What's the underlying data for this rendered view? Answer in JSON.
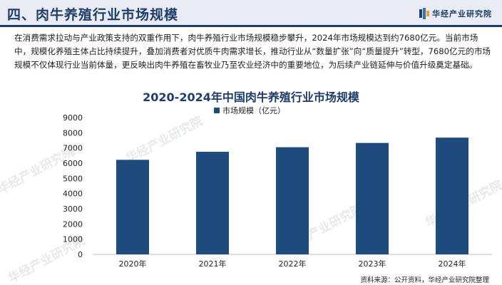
{
  "header": {
    "title": "四、肉牛养殖行业市场规模",
    "brand": "华经产业研究院"
  },
  "intro": "在消费需求拉动与产业政策支持的双重作用下，肉牛养殖行业市场规模稳步攀升，2024年市场规模达到约7680亿元。当前市场中，规模化养殖主体占比持续提升，叠加消费者对优质牛肉需求增长，推动行业从“数量扩张”向“质量提升”转型，7680亿元的市场规模不仅体现行业当前体量，更反映出肉牛养殖在畜牧业乃至农业经济中的重要地位，为后续产业链延伸与价值升级奠定基础。",
  "watermarks": [
    "华经产业研究院",
    "华经产业研究院",
    "华经产业研究院",
    "华经产业研究院",
    "华经产业研究院"
  ],
  "source": "资料来源：公开资料，华经产业研究院整理",
  "colors": {
    "bar": "#1f4a7d",
    "title": "#1f3d6b",
    "header_bg": "#e9edf3"
  },
  "chart_data": {
    "type": "bar",
    "title": "2020-2024年中国肉牛养殖行业市场规模",
    "categories": [
      "2020年",
      "2021年",
      "2022年",
      "2023年",
      "2024年"
    ],
    "series": [
      {
        "name": "市场规模（亿元）",
        "values": [
          6220,
          6750,
          7050,
          7330,
          7680
        ]
      }
    ],
    "ylim": [
      0,
      9000
    ],
    "yticks": [
      0,
      1000,
      2000,
      3000,
      4000,
      5000,
      6000,
      7000,
      8000,
      9000
    ],
    "xlabel": "",
    "ylabel": "",
    "legend_position": "top",
    "grid": false
  }
}
